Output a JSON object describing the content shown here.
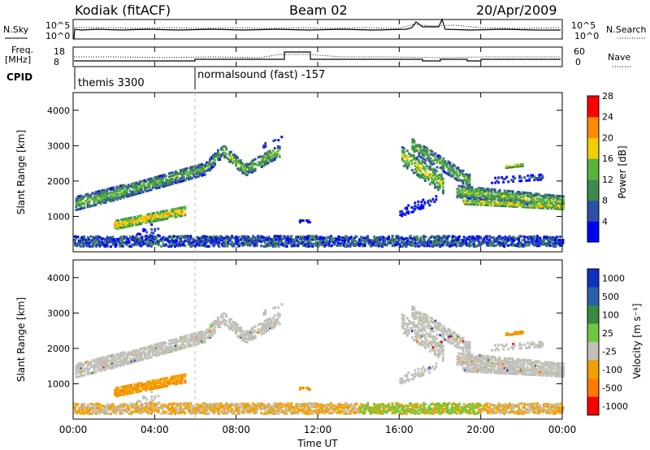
{
  "header": {
    "station": "Kodiak (fitACF)",
    "beam": "Beam 02",
    "date": "20/Apr/2009"
  },
  "status_panels": {
    "nsky_label": "N.Sky",
    "nsky_ticks": [
      "10^5",
      "10^0"
    ],
    "nsearch_label": "N.Search",
    "nsearch_ticks": [
      "10^5",
      "10^0"
    ],
    "freq_label_1": "Freq.",
    "freq_label_2": "[MHz]",
    "freq_ticks": [
      "18",
      "8"
    ],
    "nave_label": "Nave",
    "nave_ticks": [
      "60",
      "0"
    ],
    "cpid_label": "CPID",
    "cpid_1": "themis 3300",
    "cpid_2": "normalsound (fast) -157"
  },
  "chart_data": [
    {
      "type": "heatmap",
      "name": "power",
      "ylabel": "Slant Range [km]",
      "yticks": [
        "1000",
        "2000",
        "3000",
        "4000"
      ],
      "ylim": [
        0,
        4500
      ],
      "colorbar_label": "Power [dB]",
      "colorbar_ticks": [
        "4",
        "8",
        "12",
        "16",
        "20",
        "24",
        "28"
      ],
      "colors": [
        "#0000ff",
        "#2e4fa8",
        "#3f8a4d",
        "#59b33e",
        "#f0d000",
        "#ff8a00",
        "#ff0000"
      ]
    },
    {
      "type": "heatmap",
      "name": "velocity",
      "ylabel": "Slant Range [km]",
      "yticks": [
        "1000",
        "2000",
        "3000",
        "4000"
      ],
      "ylim": [
        0,
        4500
      ],
      "colorbar_label": "Velocity [m s⁻¹]",
      "colorbar_ticks": [
        "1000",
        "500",
        "100",
        "25",
        "-25",
        "-100",
        "-500",
        "-1000"
      ],
      "colors": [
        "#1030c0",
        "#2a60a8",
        "#3a8a40",
        "#70c840",
        "#c0c0b8",
        "#f2a000",
        "#ff7a00",
        "#ff0000"
      ]
    }
  ],
  "x_axis": {
    "label": "Time UT",
    "ticks": [
      "00:00",
      "04:00",
      "08:00",
      "12:00",
      "16:00",
      "20:00",
      "00:00"
    ]
  }
}
